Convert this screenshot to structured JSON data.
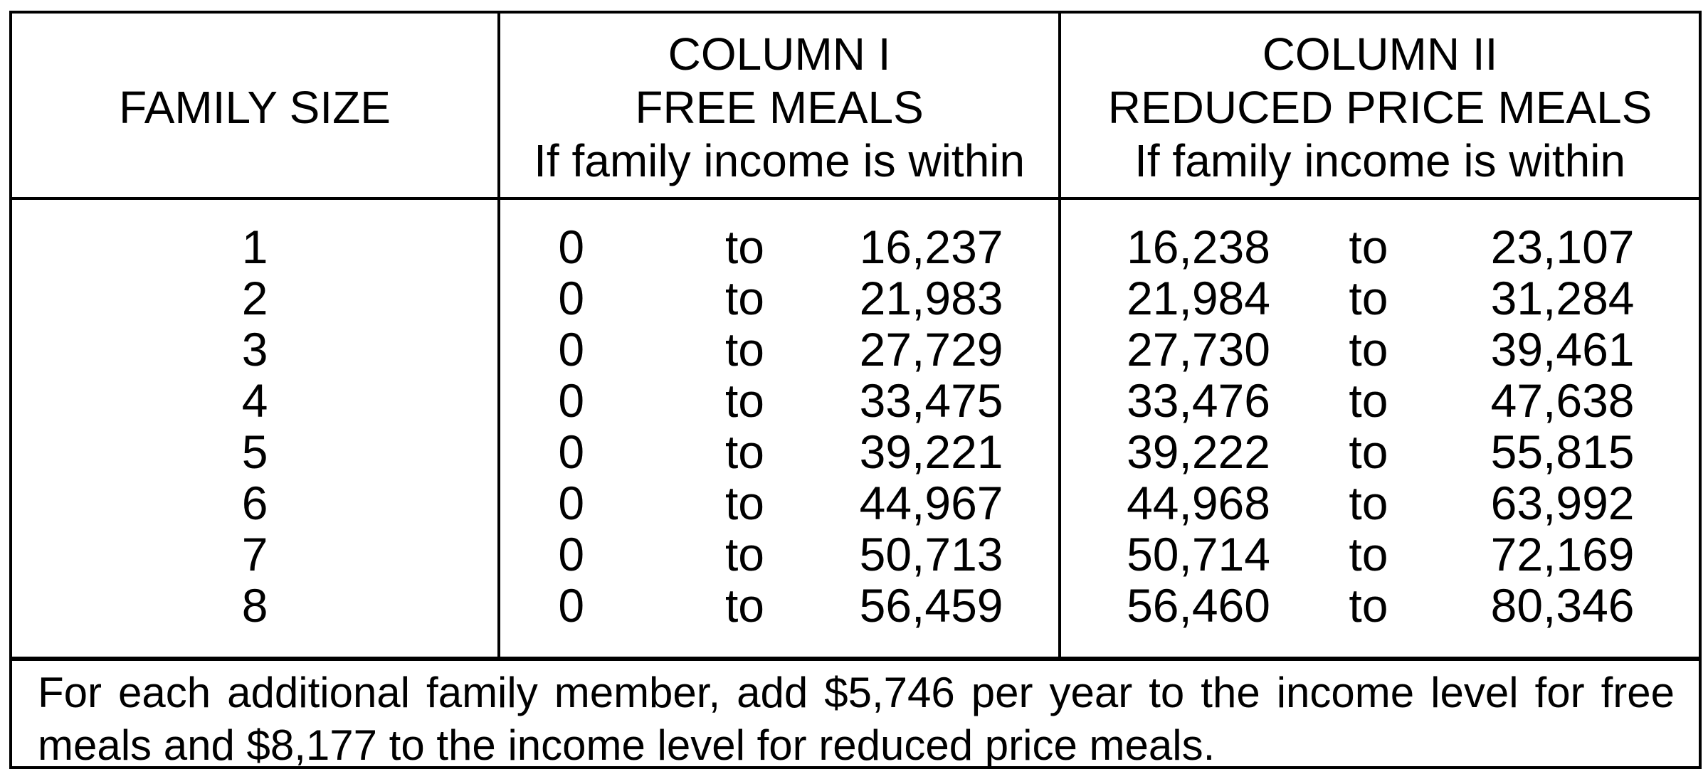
{
  "colors": {
    "background": "#ffffff",
    "text": "#000000",
    "border": "#000000"
  },
  "table": {
    "columns": [
      {
        "title": "FAMILY SIZE"
      },
      {
        "title_line1": "COLUMN I",
        "title_line2": "FREE MEALS",
        "subtitle": "If family income is within"
      },
      {
        "title_line1": "COLUMN II",
        "title_line2": "REDUCED PRICE MEALS",
        "subtitle": "If family income is within"
      }
    ],
    "to_label": "to",
    "rows": [
      {
        "family_size": "1",
        "free_min": "0",
        "free_max": "16,237",
        "reduced_min": "16,238",
        "reduced_max": "23,107"
      },
      {
        "family_size": "2",
        "free_min": "0",
        "free_max": "21,983",
        "reduced_min": "21,984",
        "reduced_max": "31,284"
      },
      {
        "family_size": "3",
        "free_min": "0",
        "free_max": "27,729",
        "reduced_min": "27,730",
        "reduced_max": "39,461"
      },
      {
        "family_size": "4",
        "free_min": "0",
        "free_max": "33,475",
        "reduced_min": "33,476",
        "reduced_max": "47,638"
      },
      {
        "family_size": "5",
        "free_min": "0",
        "free_max": "39,221",
        "reduced_min": "39,222",
        "reduced_max": "55,815"
      },
      {
        "family_size": "6",
        "free_min": "0",
        "free_max": "44,967",
        "reduced_min": "44,968",
        "reduced_max": "63,992"
      },
      {
        "family_size": "7",
        "free_min": "0",
        "free_max": "50,713",
        "reduced_min": "50,714",
        "reduced_max": "72,169"
      },
      {
        "family_size": "8",
        "free_min": "0",
        "free_max": "56,459",
        "reduced_min": "56,460",
        "reduced_max": "80,346"
      }
    ]
  },
  "footer": {
    "lines": [
      "For each additional family member, add $5,746 per year to the income level for free",
      "meals and $8,177 to the income level for reduced price meals."
    ]
  }
}
